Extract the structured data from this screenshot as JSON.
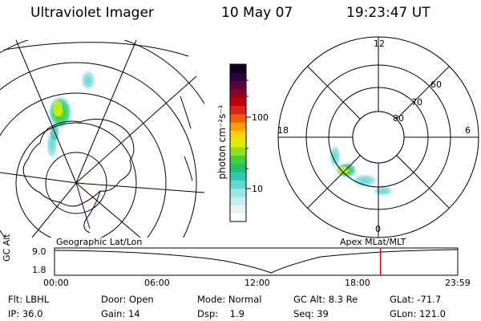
{
  "header": {
    "title": "Ultraviolet Imager",
    "date": "10 May 07",
    "time": "19:23:47 UT"
  },
  "left_panel": {
    "label": "Geographic Lat/Lon"
  },
  "right_panel": {
    "label": "Apex  MLat/MLT",
    "mlt_labels": {
      "top": "12",
      "bottom": "0",
      "left": "18",
      "right": "6"
    },
    "lat_labels": [
      "60",
      "70",
      "80"
    ]
  },
  "colorbar": {
    "unit": "photon cm⁻²s⁻¹",
    "tick_labels": [
      "100",
      "10"
    ],
    "colors": [
      "#ffffff",
      "#e8f4f8",
      "#c8ecf0",
      "#a0e4e8",
      "#60d8d0",
      "#30c8b0",
      "#20c070",
      "#40d040",
      "#90e020",
      "#d8f000",
      "#f8d800",
      "#f8a000",
      "#f06000",
      "#e02020",
      "#c00000",
      "#900020",
      "#600040",
      "#300040",
      "#100020"
    ]
  },
  "timeline": {
    "ylabel": "GC Alt",
    "y_ticks": [
      "9.0",
      "1.8"
    ],
    "x_ticks": [
      "00:00",
      "06:00",
      "12:00",
      "18:00",
      "23:59"
    ],
    "marker_hour": 19.4
  },
  "info": {
    "row1": [
      {
        "label": "Flt:",
        "value": "LBHL"
      },
      {
        "label": "Door:",
        "value": "Open"
      },
      {
        "label": "Mode:",
        "value": "Normal"
      },
      {
        "label": "GC Alt:",
        "value": "8.3 Re"
      },
      {
        "label": "GLat:",
        "value": "-71.7"
      }
    ],
    "row2": [
      {
        "label": "IP:",
        "value": "36.0"
      },
      {
        "label": "Gain:",
        "value": "14"
      },
      {
        "label": "Dsp:",
        "value": "1.9"
      },
      {
        "label": "Seq:",
        "value": "39"
      },
      {
        "label": "GLon:",
        "value": "121.0"
      }
    ]
  }
}
